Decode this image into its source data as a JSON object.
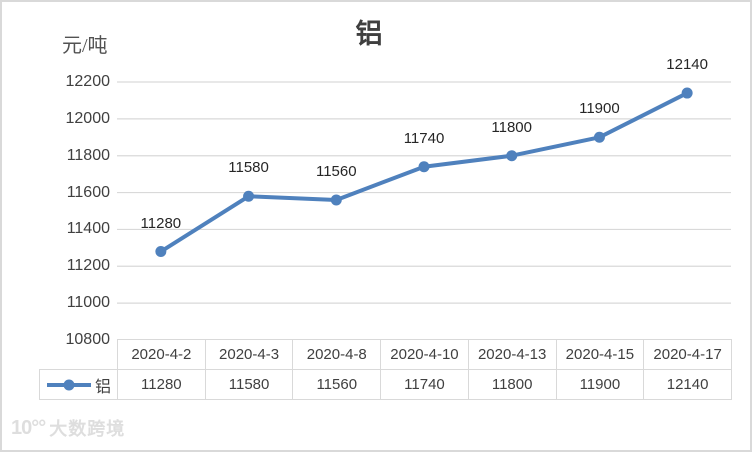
{
  "chart_data": {
    "type": "line",
    "title": "铝",
    "ylabel": "元/吨",
    "xlabel": "",
    "categories": [
      "2020-4-2",
      "2020-4-3",
      "2020-4-8",
      "2020-4-10",
      "2020-4-13",
      "2020-4-15",
      "2020-4-17"
    ],
    "series": [
      {
        "name": "铝",
        "values": [
          11280,
          11580,
          11560,
          11740,
          11800,
          11900,
          12140
        ]
      }
    ],
    "ylim": [
      10800,
      12200
    ],
    "yticks": [
      10800,
      11000,
      11200,
      11400,
      11600,
      11800,
      12000,
      12200
    ],
    "grid": true,
    "data_labels": true,
    "legend_position": "table-left"
  },
  "colors": {
    "line": "#4F81BD",
    "grid": "#D9D9D9",
    "border": "#D9D9D9",
    "tick_text": "#404040",
    "label_text": "#262626"
  },
  "watermark": {
    "logo": "10°°",
    "text": "大数跨境"
  }
}
